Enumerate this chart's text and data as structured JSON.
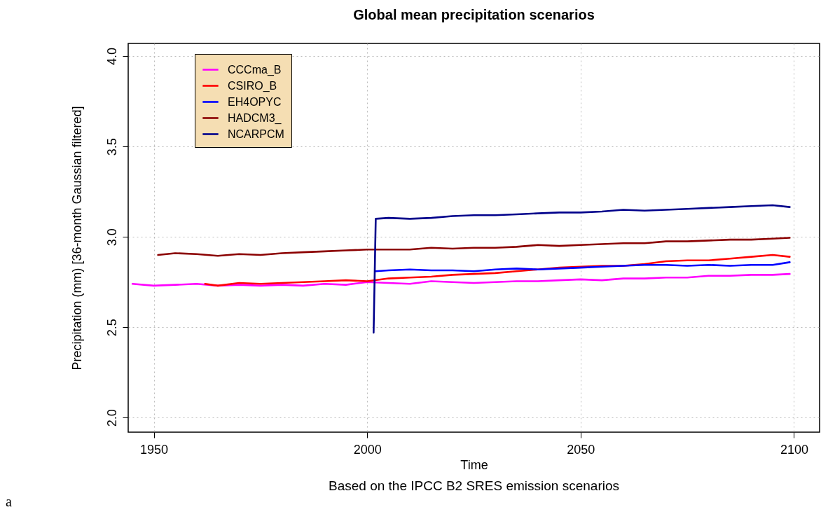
{
  "chart_data": {
    "type": "line",
    "title": "Global mean precipitation scenarios",
    "xlabel": "Time",
    "ylabel": "Precipitation (mm) [36-month Gaussian filtered]",
    "annotations": [
      "Based on the IPCC B2 SRES emission scenarios",
      "a"
    ],
    "xlim": [
      1944,
      2106
    ],
    "xticks": [
      1950,
      2000,
      2050,
      2100
    ],
    "ylim": [
      1.92,
      4.07
    ],
    "yticks": [
      {
        "value": 2,
        "label": "2.0"
      },
      2.5,
      {
        "value": 3,
        "label": "3.0"
      },
      3.5,
      {
        "value": 4,
        "label": "4.0"
      }
    ],
    "grid": true,
    "legend": "top left",
    "line_style": "solid",
    "marker": "none",
    "series": [
      {
        "name": "CCCma_B",
        "color": "#ff00ff",
        "x": [
          1945,
          1950,
          1955,
          1960,
          1965,
          1970,
          1975,
          1980,
          1985,
          1990,
          1995,
          2000,
          2005,
          2010,
          2015,
          2020,
          2025,
          2030,
          2035,
          2040,
          2045,
          2050,
          2055,
          2060,
          2065,
          2070,
          2075,
          2080,
          2085,
          2090,
          2095,
          2099
        ],
        "values": [
          2.74,
          2.73,
          2.735,
          2.74,
          2.73,
          2.735,
          2.73,
          2.735,
          2.73,
          2.74,
          2.735,
          2.75,
          2.745,
          2.74,
          2.755,
          2.75,
          2.745,
          2.75,
          2.755,
          2.755,
          2.76,
          2.765,
          2.76,
          2.77,
          2.77,
          2.775,
          2.775,
          2.785,
          2.785,
          2.79,
          2.79,
          2.795
        ]
      },
      {
        "name": "CSIRO_B",
        "color": "#ff0000",
        "x": [
          1962,
          1965,
          1970,
          1975,
          1980,
          1985,
          1990,
          1995,
          2000,
          2005,
          2010,
          2015,
          2020,
          2025,
          2030,
          2035,
          2040,
          2045,
          2050,
          2055,
          2060,
          2065,
          2070,
          2075,
          2080,
          2085,
          2090,
          2095,
          2099
        ],
        "values": [
          2.74,
          2.73,
          2.745,
          2.74,
          2.745,
          2.75,
          2.755,
          2.76,
          2.755,
          2.77,
          2.775,
          2.78,
          2.79,
          2.795,
          2.8,
          2.81,
          2.82,
          2.83,
          2.835,
          2.84,
          2.84,
          2.85,
          2.865,
          2.87,
          2.87,
          2.88,
          2.89,
          2.9,
          2.89
        ]
      },
      {
        "name": "EH4OPYC",
        "color": "#0000ff",
        "x": [
          2002,
          2005,
          2010,
          2015,
          2020,
          2025,
          2030,
          2035,
          2040,
          2045,
          2050,
          2055,
          2060,
          2065,
          2070,
          2075,
          2080,
          2085,
          2090,
          2095,
          2099
        ],
        "values": [
          2.81,
          2.815,
          2.82,
          2.815,
          2.815,
          2.81,
          2.82,
          2.825,
          2.82,
          2.825,
          2.83,
          2.835,
          2.84,
          2.845,
          2.845,
          2.84,
          2.845,
          2.84,
          2.845,
          2.845,
          2.86
        ]
      },
      {
        "name": "HADCM3_",
        "color": "#8b0000",
        "x": [
          1951,
          1955,
          1960,
          1965,
          1970,
          1975,
          1980,
          1985,
          1990,
          1995,
          2000,
          2005,
          2010,
          2015,
          2020,
          2025,
          2030,
          2035,
          2040,
          2045,
          2050,
          2055,
          2060,
          2065,
          2070,
          2075,
          2080,
          2085,
          2090,
          2095,
          2099
        ],
        "values": [
          2.9,
          2.91,
          2.905,
          2.895,
          2.905,
          2.9,
          2.91,
          2.915,
          2.92,
          2.925,
          2.93,
          2.93,
          2.93,
          2.94,
          2.935,
          2.94,
          2.94,
          2.945,
          2.955,
          2.95,
          2.955,
          2.96,
          2.965,
          2.965,
          2.975,
          2.975,
          2.98,
          2.985,
          2.985,
          2.99,
          2.995
        ]
      },
      {
        "name": "NCARPCM",
        "color": "#00008b",
        "x": [
          2001.5,
          2002,
          2005,
          2010,
          2015,
          2020,
          2025,
          2030,
          2035,
          2040,
          2045,
          2050,
          2055,
          2060,
          2065,
          2070,
          2075,
          2080,
          2085,
          2090,
          2095,
          2099
        ],
        "values": [
          2.47,
          3.1,
          3.105,
          3.1,
          3.105,
          3.115,
          3.12,
          3.12,
          3.125,
          3.13,
          3.135,
          3.135,
          3.14,
          3.15,
          3.145,
          3.15,
          3.155,
          3.16,
          3.165,
          3.17,
          3.175,
          3.165
        ]
      }
    ]
  }
}
